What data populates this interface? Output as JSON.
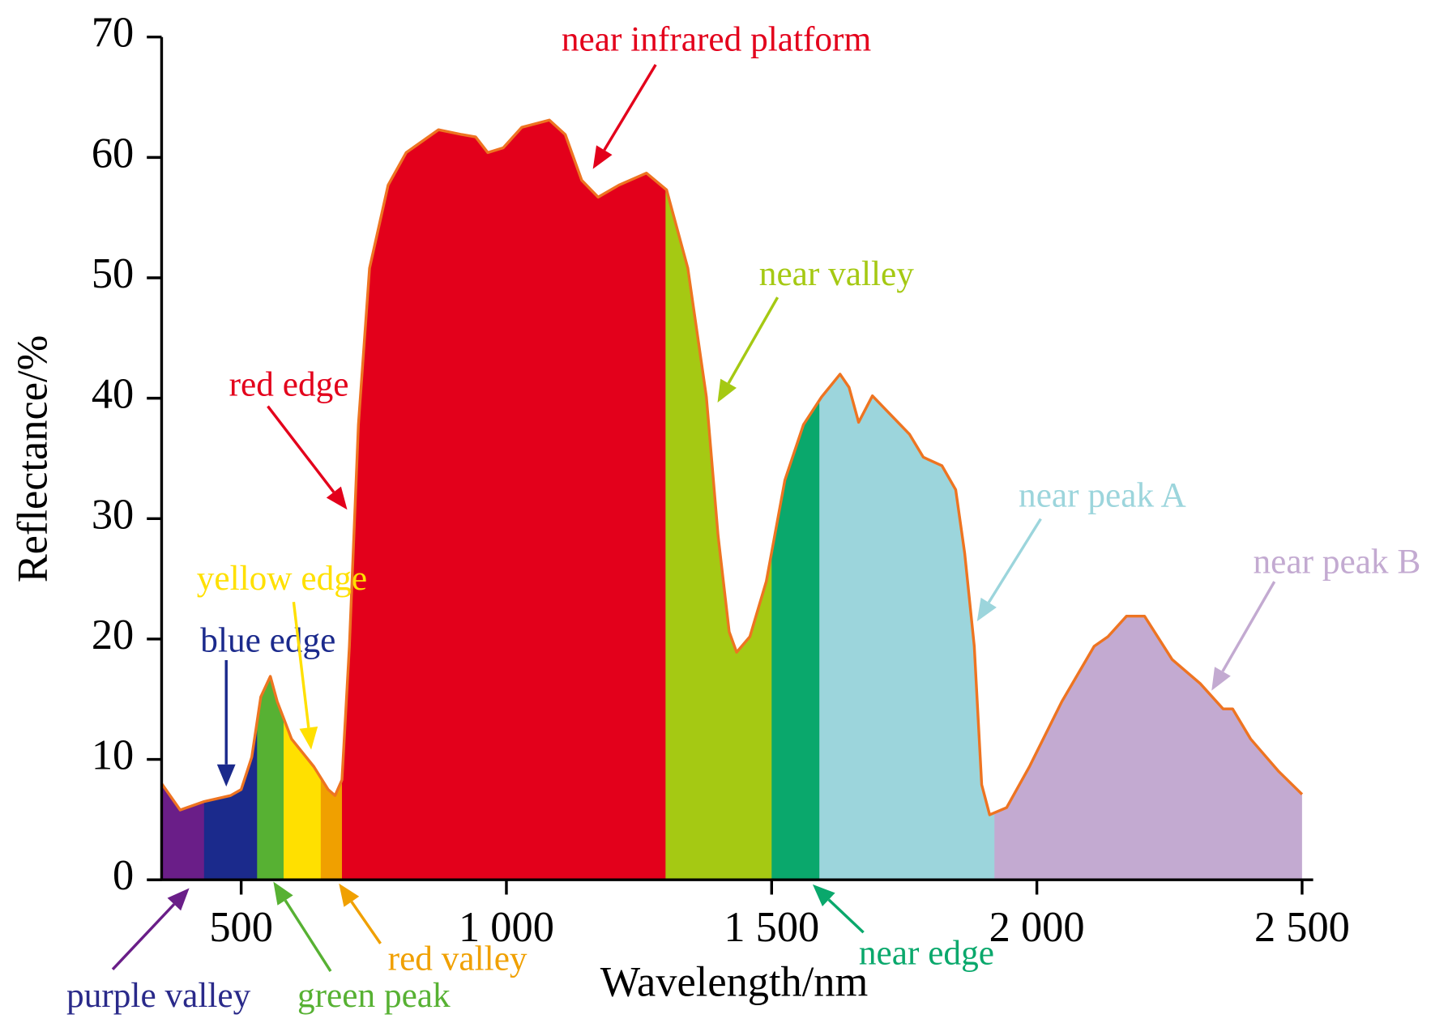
{
  "chart_data": {
    "type": "area",
    "x_label": "Wavelength/nm",
    "y_label": "Reflectance/%",
    "line_color": "#ee7421",
    "xlim": [
      350,
      2500
    ],
    "ylim": [
      0,
      70
    ],
    "xticks": [
      500,
      {
        "value": 1000,
        "label": "1 000"
      },
      {
        "value": 1500,
        "label": "1 500"
      },
      {
        "value": 2000,
        "label": "2 000"
      },
      {
        "value": 2500,
        "label": "2 500"
      }
    ],
    "yticks": [
      0,
      10,
      20,
      30,
      40,
      50,
      60,
      70
    ],
    "x": [
      350,
      385,
      430,
      480,
      500,
      520,
      537,
      555,
      568,
      595,
      637,
      664,
      677,
      690,
      704,
      721,
      742,
      777,
      811,
      872,
      916,
      942,
      965,
      994,
      1029,
      1081,
      1111,
      1142,
      1173,
      1212,
      1264,
      1302,
      1342,
      1377,
      1399,
      1420,
      1434,
      1459,
      1490,
      1525,
      1560,
      1594,
      1629,
      1646,
      1664,
      1690,
      1725,
      1760,
      1786,
      1821,
      1847,
      1864,
      1882,
      1896,
      1911,
      1943,
      1986,
      2047,
      2108,
      2134,
      2169,
      2203,
      2255,
      2308,
      2351,
      2369,
      2403,
      2456,
      2500
    ],
    "values": [
      8.0,
      5.8,
      6.5,
      7.0,
      7.5,
      10.2,
      15.2,
      16.9,
      14.8,
      11.7,
      9.4,
      7.5,
      7.0,
      8.3,
      19.4,
      37.8,
      50.8,
      57.7,
      60.4,
      62.3,
      61.9,
      61.7,
      60.4,
      60.8,
      62.5,
      63.1,
      61.9,
      58.1,
      56.7,
      57.7,
      58.7,
      57.3,
      50.8,
      40.1,
      28.6,
      20.6,
      18.9,
      20.2,
      24.8,
      33.2,
      37.8,
      40.1,
      42.0,
      40.9,
      38.0,
      40.2,
      38.6,
      37.0,
      35.1,
      34.4,
      32.4,
      27.1,
      19.4,
      7.9,
      5.4,
      6.0,
      9.4,
      14.8,
      19.4,
      20.2,
      21.9,
      21.9,
      18.3,
      16.3,
      14.2,
      14.2,
      11.7,
      9.0,
      7.1
    ],
    "regions": [
      {
        "color": "#6a1e88",
        "start": 350,
        "end": 430
      },
      {
        "color": "#1b2a8c",
        "start": 430,
        "end": 530
      },
      {
        "color": "#57b133",
        "start": 530,
        "end": 580
      },
      {
        "color": "#ffe000",
        "start": 580,
        "end": 650
      },
      {
        "color": "#f0a000",
        "start": 650,
        "end": 690
      },
      {
        "color": "#e3001b",
        "start": 690,
        "end": 1300
      },
      {
        "color": "#a5c913",
        "start": 1300,
        "end": 1500
      },
      {
        "color": "#0aa86c",
        "start": 1500,
        "end": 1590
      },
      {
        "color": "#9cd5dc",
        "start": 1590,
        "end": 1920
      },
      {
        "color": "#c3aad1",
        "start": 1920,
        "end": 2500
      }
    ],
    "annotations": [
      {
        "text": "purple valley",
        "color": "#2a2a8a",
        "arrow_color": "#6a1e88"
      },
      {
        "text": "blue edge",
        "color": "#1b2a8c"
      },
      {
        "text": "green peak",
        "color": "#57b133"
      },
      {
        "text": "yellow edge",
        "color": "#ffe000"
      },
      {
        "text": "red valley",
        "color": "#f0a000"
      },
      {
        "text": "red edge",
        "color": "#e3001b"
      },
      {
        "text": "near infrared platform",
        "color": "#e3001b"
      },
      {
        "text": "near valley",
        "color": "#a5c913"
      },
      {
        "text": "near edge",
        "color": "#0aa86c"
      },
      {
        "text": "near peak A",
        "color": "#9cd5dc"
      },
      {
        "text": "near peak B",
        "color": "#c3aad1"
      }
    ]
  }
}
